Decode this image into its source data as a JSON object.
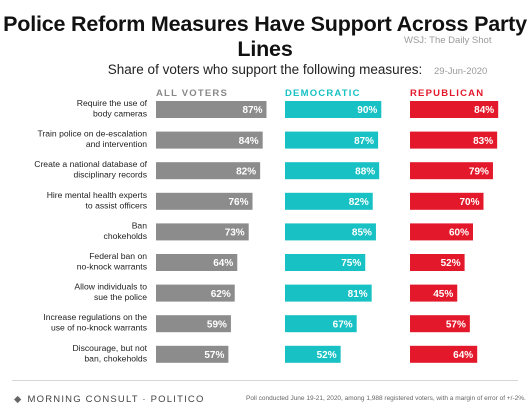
{
  "title": "Police Reform Measures Have Support Across Party Lines",
  "subtitle": "Share of voters who support the following measures:",
  "source": {
    "line1": "WSJ: The Daily Shot",
    "date": "29-Jun-2020"
  },
  "colors": {
    "all_voters": "#8c8c8c",
    "democratic": "#17c1c4",
    "republican": "#e3182a"
  },
  "footer": {
    "brand": "MORNING CONSULT · POLITICO",
    "note": "Poll conducted June 19-21, 2020, among 1,988 registered voters, with a margin of error of +/-2%."
  },
  "chart_data": {
    "type": "bar",
    "orientation": "horizontal",
    "title": "Police Reform Measures Have Support Across Party Lines",
    "subtitle": "Share of voters who support the following measures:",
    "unit": "%",
    "categories": [
      "Require the use of body cameras",
      "Train police on de-escalation and intervention",
      "Create a national database of disciplinary records",
      "Hire mental health experts to assist officers",
      "Ban chokeholds",
      "Federal ban on no-knock warrants",
      "Allow individuals to sue the police",
      "Increase regulations on the use of no-knock warrants",
      "Discourage, but not ban, chokeholds"
    ],
    "category_lines": [
      [
        "Require the use of",
        "body cameras"
      ],
      [
        "Train police on de-escalation",
        "and intervention"
      ],
      [
        "Create a national database of",
        "disciplinary records"
      ],
      [
        "Hire mental health experts",
        "to assist officers"
      ],
      [
        "Ban",
        "chokeholds"
      ],
      [
        "Federal ban on",
        "no-knock warrants"
      ],
      [
        "Allow individuals to",
        "sue the police"
      ],
      [
        "Increase regulations on the",
        "use of no-knock warrants"
      ],
      [
        "Discourage, but not",
        "ban, chokeholds"
      ]
    ],
    "series": [
      {
        "name": "ALL VOTERS",
        "values": [
          87,
          84,
          82,
          76,
          73,
          64,
          62,
          59,
          57
        ]
      },
      {
        "name": "DEMOCRATIC",
        "values": [
          90,
          87,
          88,
          82,
          85,
          75,
          81,
          67,
          52
        ]
      },
      {
        "name": "REPUBLICAN",
        "values": [
          84,
          83,
          79,
          70,
          60,
          52,
          45,
          57,
          64
        ]
      }
    ],
    "xlim": [
      0,
      100
    ],
    "grid": false,
    "legend": "column headers above each panel"
  }
}
